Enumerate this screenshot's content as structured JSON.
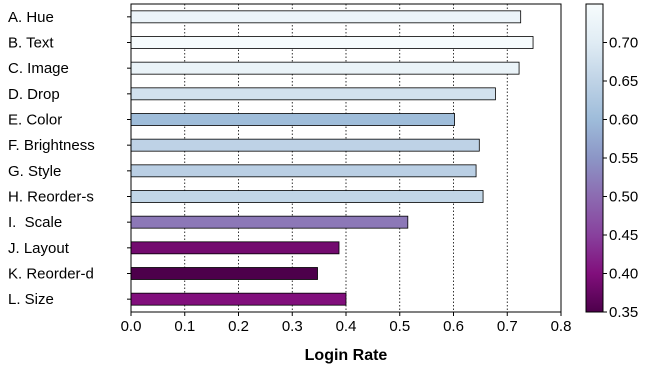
{
  "chart_data": {
    "type": "bar",
    "orientation": "horizontal",
    "title": "",
    "xlabel": "Login Rate",
    "ylabel": "",
    "xlim": [
      0.0,
      0.8
    ],
    "xticks": [
      "0.0",
      "0.1",
      "0.2",
      "0.3",
      "0.4",
      "0.5",
      "0.6",
      "0.7",
      "0.8"
    ],
    "grid": "vertical dotted",
    "categories": [
      "A. Hue",
      "B. Text",
      "C. Image",
      "D. Drop",
      "E. Color",
      "F. Brightness",
      "G. Style",
      "H. Reorder-s",
      "I.  Scale",
      "J. Layout",
      "K. Reorder-d",
      "L. Size"
    ],
    "values": [
      0.725,
      0.748,
      0.722,
      0.678,
      0.602,
      0.648,
      0.642,
      0.655,
      0.515,
      0.387,
      0.347,
      0.4
    ],
    "colormap": {
      "name": "BuPu",
      "range": [
        0.35,
        0.75
      ],
      "ticks": [
        "0.70",
        "0.65",
        "0.60",
        "0.55",
        "0.50",
        "0.45",
        "0.40",
        "0.35"
      ],
      "stops": [
        {
          "v": 0.35,
          "color": "#4d004b"
        },
        {
          "v": 0.4,
          "color": "#810f7c"
        },
        {
          "v": 0.45,
          "color": "#88419d"
        },
        {
          "v": 0.5,
          "color": "#8c6bb1"
        },
        {
          "v": 0.55,
          "color": "#8c96c6"
        },
        {
          "v": 0.6,
          "color": "#9ebcda"
        },
        {
          "v": 0.65,
          "color": "#bfd3e6"
        },
        {
          "v": 0.7,
          "color": "#e0ecf4"
        },
        {
          "v": 0.75,
          "color": "#f7fcfd"
        }
      ]
    }
  }
}
